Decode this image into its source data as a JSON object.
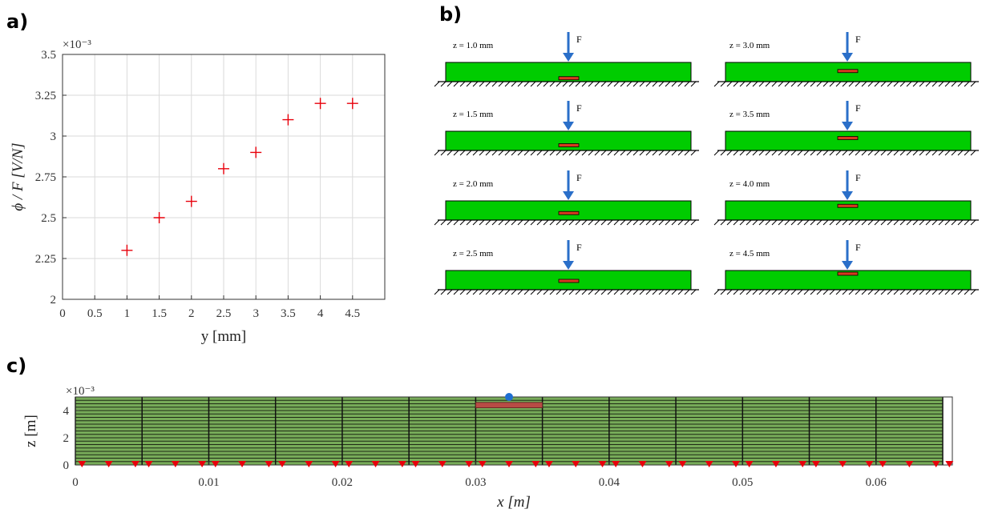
{
  "panel_labels": {
    "a": "a)",
    "b": "b)",
    "c": "c)"
  },
  "chart_data": [
    {
      "type": "scatter",
      "panel": "a)",
      "marker": "+",
      "marker_color": "#e8000b",
      "multiplier": "×10⁻³",
      "xlabel": "y  [mm]",
      "ylabel": "ϕ / F  [V/N]",
      "xlim": [
        0,
        5
      ],
      "ylim": [
        2,
        3.5
      ],
      "xticks": [
        "0",
        "0.5",
        "1",
        "1.5",
        "2",
        "2.5",
        "3",
        "3.5",
        "4",
        "4.5"
      ],
      "yticks": [
        "2",
        "2.25",
        "2.5",
        "2.75",
        "3",
        "3.25",
        "3.5"
      ],
      "grid": true,
      "series": [
        {
          "x": [
            1,
            1.5,
            2,
            2.5,
            3,
            3.5,
            4,
            4.5
          ],
          "y": [
            2.3,
            2.5,
            2.6,
            2.8,
            2.9,
            3.1,
            3.2,
            3.2
          ]
        }
      ]
    },
    {
      "type": "heatmap",
      "panel": "c)",
      "multiplier": "×10⁻³",
      "xlabel": "x [m]",
      "ylabel": "z [m]",
      "xlim": [
        0,
        0.065
      ],
      "ylim": [
        0,
        5
      ],
      "xticks": [
        "0",
        "0.01",
        "0.02",
        "0.03",
        "0.04",
        "0.05",
        "0.06"
      ],
      "yticks": [
        "0",
        "2",
        "4"
      ],
      "mesh_color": "#77ab59",
      "electrode": {
        "x0": 0.03,
        "x1": 0.035,
        "z0": 4.2,
        "z1": 4.6,
        "color": "#b84c45"
      },
      "load_point": {
        "x": 0.0325,
        "z": 5,
        "color": "#1f6fd1"
      },
      "support_color": "#e8000b"
    }
  ],
  "diagram": {
    "panel": "b)",
    "force_label": "F",
    "beam_color": "#00cc00",
    "arrow_color": "#2a6fc9",
    "electrode_color": "#d63a1f",
    "items": [
      {
        "label": "z = 1.0 mm",
        "z": 1.0
      },
      {
        "label": "z = 3.0 mm",
        "z": 3.0
      },
      {
        "label": "z = 1.5 mm",
        "z": 1.5
      },
      {
        "label": "z = 3.5 mm",
        "z": 3.5
      },
      {
        "label": "z = 2.0 mm",
        "z": 2.0
      },
      {
        "label": "z = 4.0 mm",
        "z": 4.0
      },
      {
        "label": "z = 2.5 mm",
        "z": 2.5
      },
      {
        "label": "z = 4.5 mm",
        "z": 4.5
      }
    ]
  }
}
